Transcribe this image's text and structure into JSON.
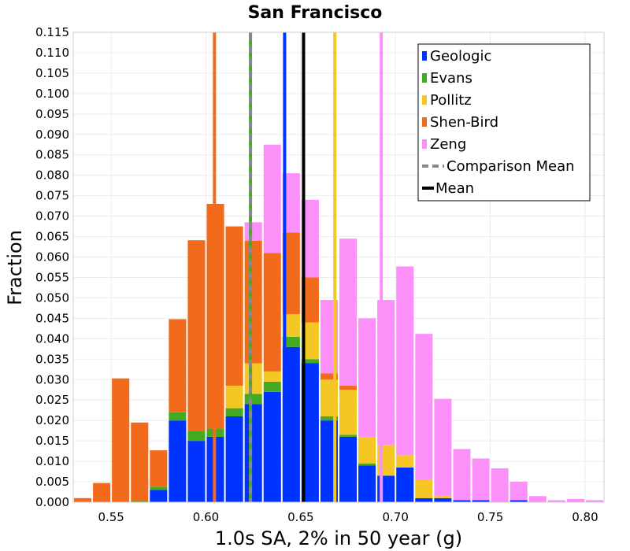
{
  "chart_data": {
    "type": "bar",
    "stacked": true,
    "title": "San Francisco",
    "xlabel": "1.0s SA, 2% in 50 year (g)",
    "ylabel": "Fraction",
    "xlim": [
      0.53,
      0.81
    ],
    "ylim": [
      0,
      0.115
    ],
    "grid": true,
    "legend_position": "top-right",
    "x_ticks": [
      0.55,
      0.6,
      0.65,
      0.7,
      0.75,
      0.8
    ],
    "x_tick_labels": [
      "0.55",
      "0.60",
      "0.65",
      "0.70",
      "0.75",
      "0.80"
    ],
    "y_ticks": [
      0,
      0.005,
      0.01,
      0.015,
      0.02,
      0.025,
      0.03,
      0.035,
      0.04,
      0.045,
      0.05,
      0.055,
      0.06,
      0.065,
      0.07,
      0.075,
      0.08,
      0.085,
      0.09,
      0.095,
      0.1,
      0.105,
      0.11,
      0.115
    ],
    "y_tick_labels": [
      "0.000",
      "0.005",
      "0.010",
      "0.015",
      "0.020",
      "0.025",
      "0.030",
      "0.035",
      "0.040",
      "0.045",
      "0.050",
      "0.055",
      "0.060",
      "0.065",
      "0.070",
      "0.075",
      "0.080",
      "0.085",
      "0.090",
      "0.095",
      "0.100",
      "0.105",
      "0.110",
      "0.115"
    ],
    "bin_width": 0.01,
    "bins": [
      0.53,
      0.54,
      0.55,
      0.56,
      0.57,
      0.58,
      0.59,
      0.6,
      0.61,
      0.62,
      0.63,
      0.64,
      0.65,
      0.66,
      0.67,
      0.68,
      0.69,
      0.7,
      0.71,
      0.72,
      0.73,
      0.74,
      0.75,
      0.76,
      0.77,
      0.78,
      0.79,
      0.8
    ],
    "series": [
      {
        "name": "Geologic",
        "color": "#0033ff",
        "values": [
          0,
          0,
          0,
          0,
          0.003,
          0.02,
          0.015,
          0.016,
          0.021,
          0.024,
          0.027,
          0.038,
          0.034,
          0.02,
          0.016,
          0.009,
          0.0065,
          0.0085,
          0.001,
          0.001,
          0.0005,
          0.0005,
          0,
          0.0005,
          0,
          0,
          0,
          0
        ]
      },
      {
        "name": "Evans",
        "color": "#44aa22",
        "values": [
          0,
          0,
          0,
          0.0003,
          0.0008,
          0.002,
          0.0025,
          0.002,
          0.002,
          0.0025,
          0.0025,
          0.0025,
          0.001,
          0.001,
          0.0005,
          0.0005,
          0,
          0,
          0,
          0,
          0,
          0,
          0,
          0,
          0,
          0,
          0,
          0
        ]
      },
      {
        "name": "Pollitz",
        "color": "#f4c724",
        "values": [
          0,
          0,
          0,
          0,
          0,
          0,
          0,
          0,
          0.0055,
          0.0075,
          0.0025,
          0.0055,
          0.009,
          0.009,
          0.011,
          0.0065,
          0.0075,
          0.003,
          0.0045,
          0.0005,
          0,
          0,
          0,
          0,
          0,
          0,
          0,
          0
        ]
      },
      {
        "name": "Shen-Bird",
        "color": "#f26a1b",
        "values": [
          0.001,
          0.0047,
          0.0303,
          0.0192,
          0.0089,
          0.0228,
          0.0466,
          0.055,
          0.039,
          0.03,
          0.029,
          0.02,
          0.011,
          0.0015,
          0.001,
          0,
          0,
          0,
          0,
          0,
          0,
          0,
          0,
          0,
          0,
          0,
          0,
          0
        ]
      },
      {
        "name": "Zeng",
        "color": "#fb91f8",
        "values": [
          0,
          0,
          0,
          0,
          0,
          0,
          0,
          0,
          0,
          0.0045,
          0.0265,
          0.0145,
          0.019,
          0.018,
          0.036,
          0.029,
          0.0355,
          0.0462,
          0.0357,
          0.0238,
          0.0125,
          0.0102,
          0.0083,
          0.0045,
          0.0015,
          0.0005,
          0.0008,
          0.0005
        ]
      }
    ],
    "vertical_lines": [
      {
        "name": "Shen-Bird",
        "x": 0.6045,
        "color": "#f26a1b",
        "style": "solid"
      },
      {
        "name": "Evans",
        "x": 0.6235,
        "color": "#44aa22",
        "style": "solid"
      },
      {
        "name": "Comparison Mean",
        "x": 0.6235,
        "color": "#888888",
        "style": "dashed"
      },
      {
        "name": "Geologic",
        "x": 0.6415,
        "color": "#0033ff",
        "style": "solid"
      },
      {
        "name": "Mean",
        "x": 0.6515,
        "color": "#000000",
        "style": "solid"
      },
      {
        "name": "Pollitz",
        "x": 0.668,
        "color": "#f4c724",
        "style": "solid"
      },
      {
        "name": "Zeng",
        "x": 0.6925,
        "color": "#fb91f8",
        "style": "solid"
      }
    ],
    "legend": [
      {
        "label": "Geologic",
        "color": "#0033ff",
        "kind": "box"
      },
      {
        "label": "Evans",
        "color": "#44aa22",
        "kind": "box"
      },
      {
        "label": "Pollitz",
        "color": "#f4c724",
        "kind": "box"
      },
      {
        "label": "Shen-Bird",
        "color": "#f26a1b",
        "kind": "box"
      },
      {
        "label": "Zeng",
        "color": "#fb91f8",
        "kind": "box"
      },
      {
        "label": "Comparison Mean",
        "color": "#888888",
        "kind": "dashed"
      },
      {
        "label": "Mean",
        "color": "#000000",
        "kind": "solid"
      }
    ]
  }
}
